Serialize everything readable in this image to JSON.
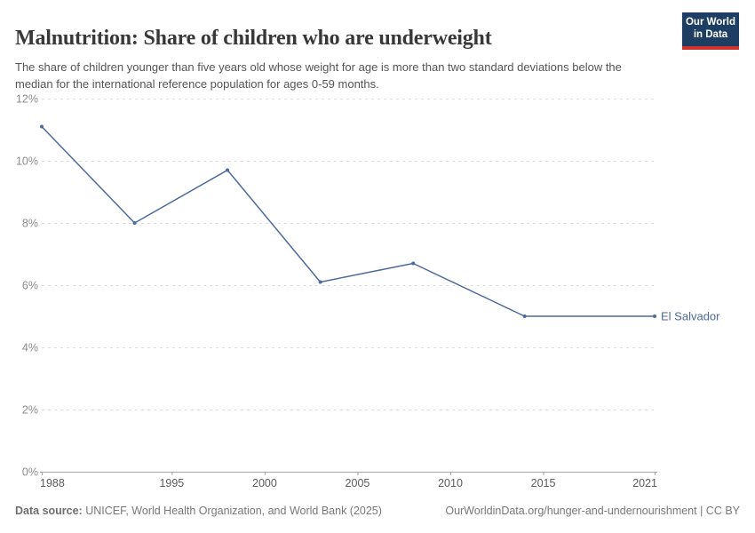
{
  "header": {
    "title": "Malnutrition: Share of children who are underweight",
    "subtitle": "The share of children younger than five years old whose weight for age is more than two standard deviations below the median for the international reference population for ages 0-59 months.",
    "logo": {
      "line1": "Our World",
      "line2": "in Data"
    }
  },
  "chart_data": {
    "type": "line",
    "title": "Malnutrition: Share of children who are underweight",
    "xlabel": "",
    "ylabel": "",
    "xlim": [
      1988,
      2021
    ],
    "ylim": [
      0,
      12
    ],
    "x_ticks": [
      1988,
      1995,
      2000,
      2005,
      2010,
      2015,
      2021
    ],
    "y_ticks": [
      0,
      2,
      4,
      6,
      8,
      10,
      12
    ],
    "y_tick_suffix": "%",
    "grid": true,
    "legend_position": "end-of-line",
    "series": [
      {
        "name": "El Salvador",
        "color": "#4c6a9c",
        "points": [
          [
            1988,
            11.1
          ],
          [
            1993,
            8.0
          ],
          [
            1998,
            9.7
          ],
          [
            2003,
            6.1
          ],
          [
            2008,
            6.7
          ],
          [
            2014,
            5.0
          ],
          [
            2021,
            5.0
          ]
        ]
      }
    ]
  },
  "colors": {
    "grid": "#dddddd",
    "axis": "#a5a5a5",
    "y_tick_label": "#8c8c8c",
    "x_tick_label": "#5b5b5b",
    "logo_bg": "#1d3d63",
    "logo_accent": "#cf332e"
  },
  "footer": {
    "source_label": "Data source:",
    "source_text": " UNICEF, World Health Organization, and World Bank (2025)",
    "link_text": "OurWorldinData.org/hunger-and-undernourishment | CC BY"
  }
}
